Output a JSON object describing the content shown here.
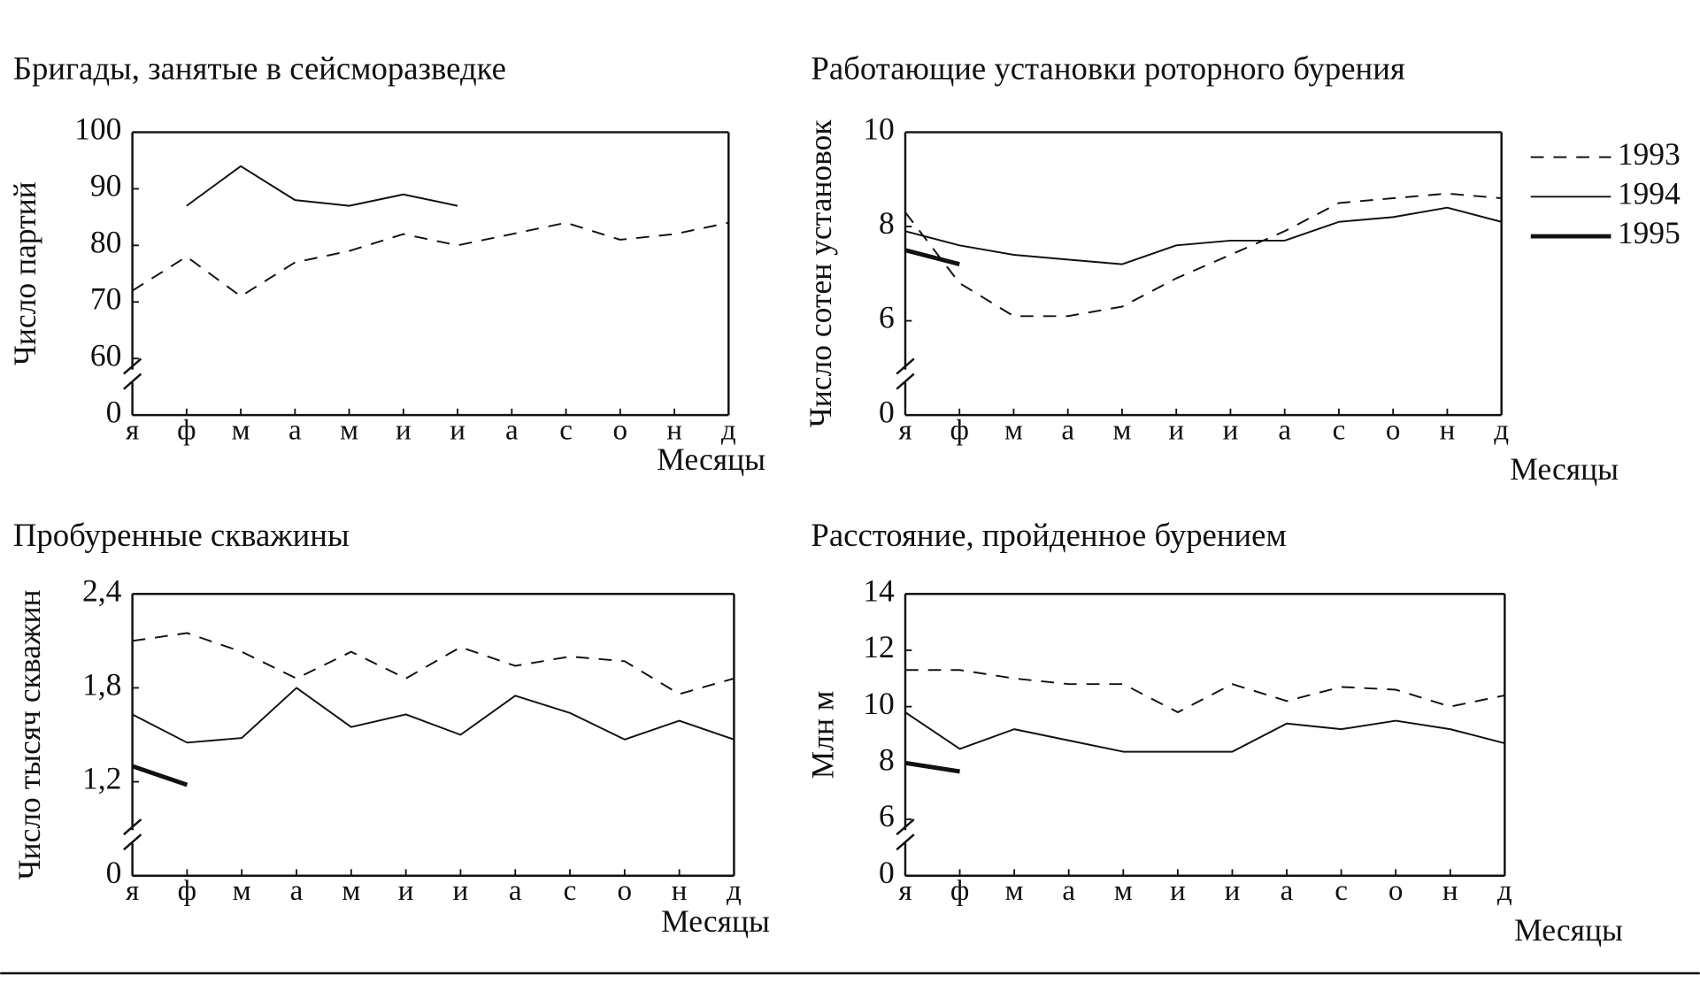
{
  "chart_data": [
    {
      "type": "line",
      "title": "Бригады, занятые в сейсморазведке",
      "y_label": "Число партий",
      "x_label": "Месяцы",
      "categories": [
        "я",
        "ф",
        "м",
        "а",
        "м",
        "и",
        "и",
        "а",
        "с",
        "о",
        "н",
        "д"
      ],
      "ylim": [
        0,
        100
      ],
      "yticks": [
        0,
        60,
        70,
        80,
        90,
        100
      ],
      "broken_axis": true,
      "series": [
        {
          "style": "dashed",
          "color": "#111",
          "values": [
            72,
            78,
            71,
            77,
            79,
            82,
            80,
            82,
            84,
            81,
            82,
            84
          ]
        },
        {
          "style": "solid",
          "color": "#111",
          "values": [
            null,
            87,
            94,
            88,
            87,
            89,
            87,
            null,
            null,
            null,
            null,
            null
          ]
        }
      ]
    },
    {
      "type": "line",
      "title": "Работающие установки роторного бурения",
      "y_label": "Число сотен установок",
      "x_label": "Месяцы",
      "categories": [
        "я",
        "ф",
        "м",
        "а",
        "м",
        "и",
        "и",
        "а",
        "с",
        "о",
        "н",
        "д"
      ],
      "ylim": [
        0,
        10
      ],
      "yticks": [
        0,
        6,
        8,
        10
      ],
      "broken_axis": true,
      "series": [
        {
          "style": "dashed",
          "color": "#111",
          "values": [
            8.3,
            6.8,
            6.1,
            6.1,
            6.3,
            6.9,
            7.4,
            7.9,
            8.5,
            8.6,
            8.7,
            8.6
          ]
        },
        {
          "style": "solid",
          "color": "#111",
          "values": [
            7.9,
            7.6,
            7.4,
            7.3,
            7.2,
            7.6,
            7.7,
            7.7,
            8.1,
            8.2,
            8.4,
            8.1
          ]
        },
        {
          "style": "thick",
          "color": "#111",
          "values": [
            7.5,
            7.2,
            null,
            null,
            null,
            null,
            null,
            null,
            null,
            null,
            null,
            null
          ]
        }
      ]
    },
    {
      "type": "line",
      "title": "Пробуренные скважины",
      "y_label": "Число тысяч скважин",
      "x_label": "Месяцы",
      "categories": [
        "я",
        "ф",
        "м",
        "а",
        "м",
        "и",
        "и",
        "а",
        "с",
        "о",
        "н",
        "д"
      ],
      "ylim": [
        0,
        2.4
      ],
      "yticks": [
        0,
        {
          "value": 1.2,
          "label": "1,2"
        },
        {
          "value": 1.8,
          "label": "1,8"
        },
        {
          "value": 2.4,
          "label": "2,4"
        }
      ],
      "broken_axis": true,
      "series": [
        {
          "style": "dashed",
          "color": "#111",
          "values": [
            2.1,
            2.15,
            2.03,
            1.86,
            2.03,
            1.86,
            2.06,
            1.94,
            2.0,
            1.97,
            1.76,
            1.86
          ]
        },
        {
          "style": "solid",
          "color": "#111",
          "values": [
            1.63,
            1.45,
            1.48,
            1.8,
            1.55,
            1.63,
            1.5,
            1.75,
            1.64,
            1.47,
            1.59,
            1.47
          ]
        },
        {
          "style": "thick",
          "color": "#111",
          "values": [
            1.3,
            1.18,
            null,
            null,
            null,
            null,
            null,
            null,
            null,
            null,
            null,
            null
          ]
        }
      ]
    },
    {
      "type": "line",
      "title": "Расстояние, пройденное бурением",
      "y_label": "Млн м",
      "x_label": "Месяцы",
      "categories": [
        "я",
        "ф",
        "м",
        "а",
        "м",
        "и",
        "и",
        "а",
        "с",
        "о",
        "н",
        "д"
      ],
      "ylim": [
        0,
        14
      ],
      "yticks": [
        0,
        6,
        8,
        10,
        12,
        14
      ],
      "broken_axis": true,
      "series": [
        {
          "style": "dashed",
          "color": "#111",
          "values": [
            11.3,
            11.3,
            11.0,
            10.8,
            10.8,
            9.8,
            10.8,
            10.2,
            10.7,
            10.6,
            10.0,
            10.4
          ]
        },
        {
          "style": "solid",
          "color": "#111",
          "values": [
            9.8,
            8.5,
            9.2,
            8.8,
            8.4,
            8.4,
            8.4,
            9.4,
            9.2,
            9.5,
            9.2,
            8.7
          ]
        },
        {
          "style": "thick",
          "color": "#111",
          "values": [
            8.0,
            7.7,
            null,
            null,
            null,
            null,
            null,
            null,
            null,
            null,
            null,
            null
          ]
        }
      ]
    }
  ],
  "legend": {
    "entries": [
      {
        "name": "1993",
        "style": "dashed"
      },
      {
        "name": "1994",
        "style": "solid"
      },
      {
        "name": "1995",
        "style": "thick"
      }
    ]
  }
}
